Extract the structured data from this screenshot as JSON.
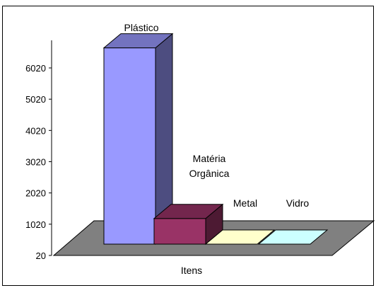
{
  "chart_data": {
    "type": "bar",
    "categories": [
      "Plástico",
      "Matéria Orgânica",
      "Metal",
      "Vidro"
    ],
    "category_label_lines": [
      [
        "Plástico"
      ],
      [
        "Matéria",
        "Orgânica"
      ],
      [
        "Metal"
      ],
      [
        "Vidro"
      ]
    ],
    "values": [
      6300,
      840,
      20,
      20
    ],
    "xlabel": "Itens",
    "ylabel": "",
    "yticks": [
      20,
      1020,
      2020,
      3020,
      4020,
      5020,
      6020
    ],
    "ylim": [
      20,
      6600
    ],
    "three_d": true,
    "grid": false,
    "colors": {
      "bars": [
        "#9999FF",
        "#993366",
        "#FFFFCC",
        "#CCFFFF"
      ],
      "floor": "#808080",
      "border": "#000000"
    }
  }
}
